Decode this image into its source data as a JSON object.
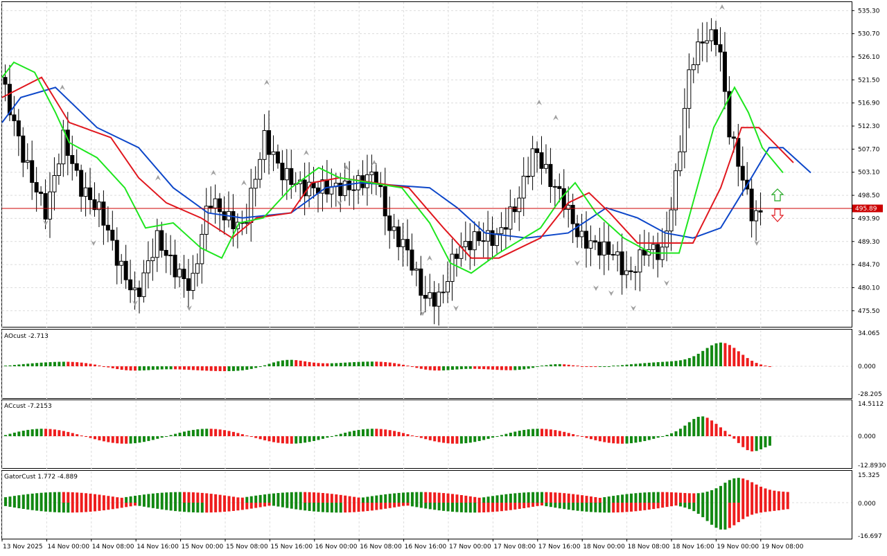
{
  "colors": {
    "bull": "#ffffff",
    "bear": "#000000",
    "jaw": "#0d47c9",
    "teeth": "#e0171e",
    "lips": "#1ee61e",
    "hist_up": "#128812",
    "hist_down": "#ee1d1d",
    "price_line": "#cc0000",
    "fractal": "#a0a0a0"
  },
  "main_chart": {
    "price_axis": [
      "535.30",
      "530.70",
      "526.10",
      "521.50",
      "516.90",
      "512.30",
      "507.70",
      "503.10",
      "498.50",
      "493.90",
      "489.30",
      "484.70",
      "480.10",
      "475.50"
    ],
    "price_range": [
      472.3,
      537.0
    ],
    "current_price": "495.89",
    "arrow_up_icon": "arrow-up-icon",
    "arrow_down_icon": "arrow-down-icon"
  },
  "indicators": {
    "ao": {
      "label": "AOcust -2.713",
      "axis": [
        "34.065",
        "0.000",
        "-28.205"
      ]
    },
    "ac": {
      "label": "ACcust -7.2153",
      "axis": [
        "14.5112",
        "0.000",
        "-12.8930"
      ]
    },
    "gator": {
      "label": "GatorCust 1.772 -4.889",
      "axis": [
        "15.325",
        "0.000",
        "-16.697"
      ]
    }
  },
  "time_axis": [
    "13 Nov 2025",
    "14 Nov 00:00",
    "14 Nov 08:00",
    "14 Nov 16:00",
    "15 Nov 00:00",
    "15 Nov 08:00",
    "15 Nov 16:00",
    "16 Nov 00:00",
    "16 Nov 08:00",
    "16 Nov 16:00",
    "17 Nov 00:00",
    "17 Nov 08:00",
    "17 Nov 16:00",
    "18 Nov 00:00",
    "18 Nov 08:00",
    "18 Nov 16:00",
    "19 Nov 00:00",
    "19 Nov 08:00"
  ]
}
